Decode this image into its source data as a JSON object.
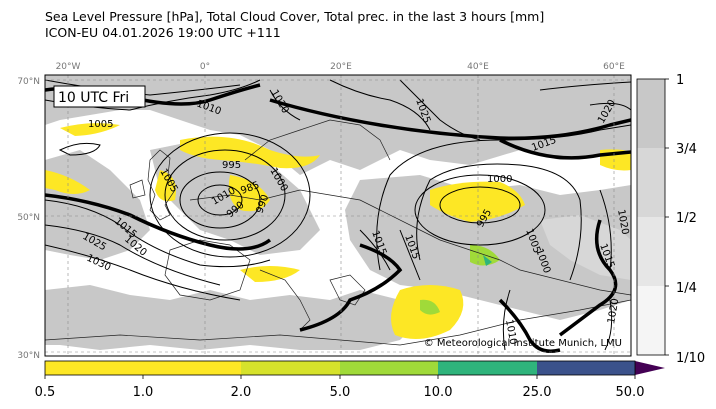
{
  "title": {
    "line1": "Sea Level Pressure [hPa], Total Cloud Cover, Total prec. in the last 3 hours [mm]",
    "line2": "ICON-EU 04.01.2026 19:00 UTC +111"
  },
  "valid_time_label": "10 UTC Fri",
  "credit": "© Meteorological Institute Munich, LMU",
  "longitude_labels": [
    "20°W",
    "0°",
    "20°E",
    "40°E",
    "60°E"
  ],
  "latitude_labels": [
    "70°N",
    "50°N",
    "30°N"
  ],
  "cloud_colorbar": {
    "labels": [
      "1",
      "3/4",
      "1/2",
      "1/4",
      "1/10"
    ],
    "colors": [
      "#c8c8c8",
      "#d7d7d7",
      "#e6e6e6",
      "#f5f5f5"
    ]
  },
  "precip_colorbar": {
    "labels": [
      "0.5",
      "1.0",
      "2.0",
      "5.0",
      "10.0",
      "25.0",
      "50.0"
    ],
    "colors": [
      "#fde725",
      "#fde725",
      "#d6e22b",
      "#a0da39",
      "#2fb47c",
      "#3b528b",
      "#440154"
    ]
  },
  "isobar_labels": [
    "1010",
    "1005",
    "1020",
    "1025",
    "1015",
    "1020",
    "995",
    "1000",
    "985",
    "990",
    "990",
    "1015",
    "1020",
    "1025",
    "1030",
    "1000",
    "995",
    "1015",
    "1015",
    "1005",
    "1000",
    "1010",
    "1015",
    "1020",
    "1020",
    "1010",
    "1005"
  ]
}
